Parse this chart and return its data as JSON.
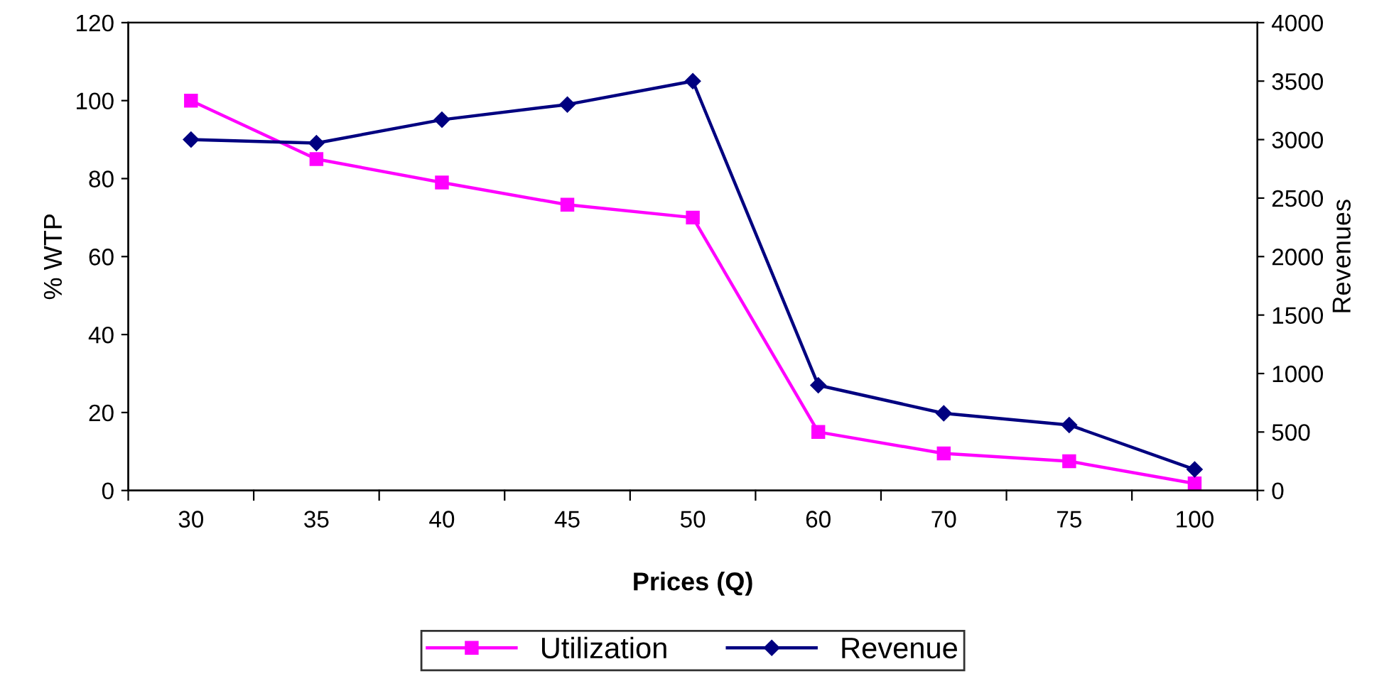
{
  "chart_data": {
    "type": "line",
    "xlabel": "Prices (Q)",
    "ylabel": "% WTP",
    "y2label": "Revenues",
    "categories": [
      "30",
      "35",
      "40",
      "45",
      "50",
      "60",
      "70",
      "75",
      "100"
    ],
    "series": [
      {
        "name": "Utilization",
        "color": "#ff00ff",
        "marker": "square",
        "values": [
          100,
          85,
          79,
          73.3,
          70,
          15,
          9.5,
          7.5,
          1.8
        ]
      },
      {
        "name": "Revenue",
        "color": "#000080",
        "marker": "diamond",
        "axis": "y2",
        "values": [
          3000,
          2970,
          3170,
          3300,
          3500,
          900,
          660,
          560,
          180
        ]
      }
    ],
    "ylim": [
      0,
      120
    ],
    "yticks": [
      0,
      20,
      40,
      60,
      80,
      100,
      120
    ],
    "y2lim": [
      0,
      4000
    ],
    "y2ticks": [
      0,
      500,
      1000,
      1500,
      2000,
      2500,
      3000,
      3500,
      4000
    ],
    "grid": false,
    "legend": "bottom",
    "line_style": "solid"
  }
}
